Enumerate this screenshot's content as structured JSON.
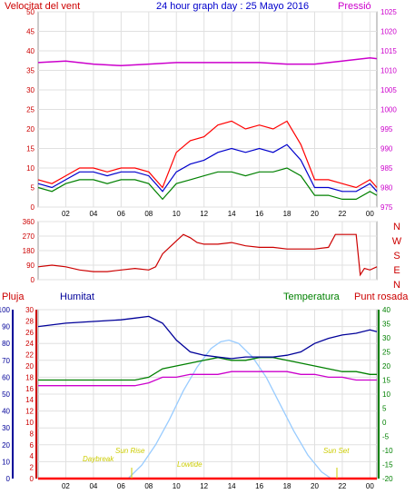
{
  "header": {
    "wind_label": "Velocitat del vent",
    "title": "24 hour graph day : 25 Mayo 2016",
    "pressure_label": "Pressió"
  },
  "lower_header": {
    "rain_label": "Pluja",
    "humidity_label": "Humitat",
    "temperature_label": "Temperatura",
    "dewpoint_label": "Punt rosada"
  },
  "annotations": {
    "daybreak": "Daybreak",
    "sunrise": "Sun Rise",
    "lowtide": "Lowtide",
    "sunset": "Sun Set"
  },
  "colors": {
    "wind_gust": "#ff0000",
    "wind_avg": "#0000cc",
    "wind_speed": "#008000",
    "pressure": "#cc00cc",
    "direction": "#cc0000",
    "humidity": "#000099",
    "temperature": "#008000",
    "dewpoint": "#cc00cc",
    "rain": "#ff0000",
    "solar": "#99ccff",
    "annotation": "#cccc00"
  },
  "x_ticks": [
    "02",
    "04",
    "06",
    "08",
    "10",
    "12",
    "14",
    "16",
    "18",
    "20",
    "22",
    "00"
  ],
  "chart_data": [
    {
      "type": "line",
      "id": "wind",
      "title": "24 hour graph day : 25 Mayo 2016",
      "x_unit": "hour",
      "xlim": [
        0,
        24.5
      ],
      "ylim_left": [
        0,
        50
      ],
      "ylim_right": [
        975,
        1025
      ],
      "left_ticks": [
        "0",
        "5",
        "10",
        "15",
        "20",
        "25",
        "30",
        "35",
        "40",
        "45",
        "50"
      ],
      "right_ticks": [
        "975",
        "980",
        "985",
        "990",
        "995",
        "1000",
        "1005",
        "1010",
        "1015",
        "1020",
        "1025"
      ],
      "series": [
        {
          "name": "Velocitat del vent",
          "role": "gust",
          "axis": "left",
          "x": [
            0,
            1,
            2,
            3,
            4,
            5,
            6,
            7,
            8,
            9,
            10,
            11,
            12,
            13,
            14,
            15,
            16,
            17,
            18,
            19,
            20,
            21,
            22,
            23,
            24,
            24.5
          ],
          "y": [
            7,
            6,
            8,
            10,
            10,
            9,
            10,
            10,
            9,
            5,
            14,
            17,
            18,
            21,
            22,
            20,
            21,
            20,
            22,
            16,
            7,
            7,
            6,
            5,
            7,
            5
          ]
        },
        {
          "name": "wind average",
          "role": "avg",
          "axis": "left",
          "x": [
            0,
            1,
            2,
            3,
            4,
            5,
            6,
            7,
            8,
            9,
            10,
            11,
            12,
            13,
            14,
            15,
            16,
            17,
            18,
            19,
            20,
            21,
            22,
            23,
            24,
            24.5
          ],
          "y": [
            6,
            5,
            7,
            9,
            9,
            8,
            9,
            9,
            8,
            4,
            9,
            11,
            12,
            14,
            15,
            14,
            15,
            14,
            16,
            12,
            5,
            5,
            4,
            4,
            6,
            4
          ]
        },
        {
          "name": "wind speed",
          "role": "speed",
          "axis": "left",
          "x": [
            0,
            1,
            2,
            3,
            4,
            5,
            6,
            7,
            8,
            9,
            10,
            11,
            12,
            13,
            14,
            15,
            16,
            17,
            18,
            19,
            20,
            21,
            22,
            23,
            24,
            24.5
          ],
          "y": [
            5,
            4,
            6,
            7,
            7,
            6,
            7,
            7,
            6,
            2,
            6,
            7,
            8,
            9,
            9,
            8,
            9,
            9,
            10,
            8,
            3,
            3,
            2,
            2,
            4,
            3
          ]
        },
        {
          "name": "Pressió",
          "role": "pressure",
          "axis": "right",
          "x": [
            0,
            2,
            4,
            6,
            8,
            10,
            12,
            14,
            16,
            18,
            20,
            22,
            24,
            24.5
          ],
          "y": [
            1012,
            1012.4,
            1011.6,
            1011.2,
            1011.6,
            1012,
            1012,
            1012,
            1012,
            1011.6,
            1011.6,
            1012.4,
            1013.2,
            1013
          ]
        }
      ]
    },
    {
      "type": "line",
      "id": "direction",
      "x_unit": "hour",
      "xlim": [
        0,
        24.5
      ],
      "ylim": [
        0,
        360
      ],
      "left_ticks": [
        "0",
        "90",
        "180",
        "270",
        "360"
      ],
      "right_labels": [
        "N",
        "W",
        "S",
        "E",
        "N"
      ],
      "series": [
        {
          "name": "wind direction",
          "x": [
            0,
            1,
            2,
            3,
            4,
            5,
            6,
            7,
            8,
            8.5,
            9,
            9.5,
            10,
            10.5,
            11,
            11.5,
            12,
            13,
            14,
            15,
            16,
            17,
            18,
            19,
            20,
            21,
            21.5,
            22,
            22.5,
            23,
            23.3,
            23.6,
            24,
            24.5
          ],
          "y": [
            80,
            90,
            80,
            60,
            50,
            50,
            60,
            70,
            60,
            80,
            160,
            200,
            240,
            280,
            260,
            230,
            220,
            220,
            230,
            210,
            200,
            200,
            190,
            190,
            190,
            200,
            280,
            280,
            280,
            280,
            30,
            70,
            60,
            80
          ]
        }
      ]
    },
    {
      "type": "line",
      "id": "humidity-temperature",
      "x_unit": "hour",
      "xlim": [
        0,
        24.5
      ],
      "ylim_humidity": [
        0,
        100
      ],
      "ylim_rain": [
        0,
        30
      ],
      "ylim_temperature": [
        -20,
        40
      ],
      "humidity_ticks": [
        "0",
        "10",
        "20",
        "30",
        "40",
        "50",
        "60",
        "70",
        "80",
        "90",
        "100"
      ],
      "rain_ticks": [
        "0",
        "2",
        "4",
        "6",
        "8",
        "10",
        "12",
        "14",
        "16",
        "18",
        "20",
        "22",
        "24",
        "26",
        "28",
        "30"
      ],
      "temperature_ticks": [
        "-20",
        "-15",
        "-10",
        "-5",
        "0",
        "5",
        "10",
        "15",
        "20",
        "25",
        "30",
        "35",
        "40"
      ],
      "series": [
        {
          "name": "Humitat",
          "axis": "humidity",
          "x": [
            0,
            2,
            4,
            6,
            7,
            8,
            9,
            10,
            11,
            12,
            13,
            14,
            15,
            16,
            17,
            18,
            19,
            20,
            21,
            22,
            23,
            24,
            24.5
          ],
          "y": [
            90,
            92,
            93,
            94,
            95,
            96,
            92,
            82,
            75,
            73,
            72,
            71,
            72,
            72,
            72,
            73,
            75,
            80,
            83,
            85,
            86,
            88,
            87
          ]
        },
        {
          "name": "Temperatura",
          "axis": "temperature",
          "x": [
            0,
            2,
            4,
            6,
            7,
            8,
            9,
            10,
            11,
            12,
            13,
            14,
            15,
            16,
            17,
            18,
            19,
            20,
            21,
            22,
            23,
            24,
            24.5
          ],
          "y": [
            15,
            15,
            15,
            15,
            15,
            16,
            19,
            20,
            21,
            22,
            23,
            22,
            22,
            23,
            23,
            22,
            21,
            20,
            19,
            18,
            18,
            17,
            17
          ]
        },
        {
          "name": "Punt rosada",
          "axis": "temperature",
          "x": [
            0,
            2,
            4,
            6,
            7,
            8,
            9,
            10,
            11,
            12,
            13,
            14,
            15,
            16,
            17,
            18,
            19,
            20,
            21,
            22,
            23,
            24,
            24.5
          ],
          "y": [
            13,
            13,
            13,
            13,
            13,
            14,
            16,
            16,
            17,
            17,
            17,
            18,
            18,
            18,
            18,
            18,
            17,
            17,
            16,
            16,
            15,
            15,
            15
          ]
        },
        {
          "name": "Pluja",
          "axis": "rain",
          "x": [
            0,
            24.5
          ],
          "y": [
            0,
            0
          ]
        },
        {
          "name": "solar",
          "axis": "humidity",
          "x": [
            6.5,
            7.5,
            8.5,
            9.5,
            10.5,
            11.5,
            12.5,
            13.2,
            13.8,
            14.5,
            15.5,
            16.5,
            17.5,
            18.5,
            19.5,
            20.5,
            21.2
          ],
          "y": [
            0,
            8,
            20,
            35,
            52,
            66,
            77,
            81,
            82,
            80,
            72,
            60,
            44,
            28,
            14,
            4,
            0
          ]
        }
      ]
    }
  ]
}
